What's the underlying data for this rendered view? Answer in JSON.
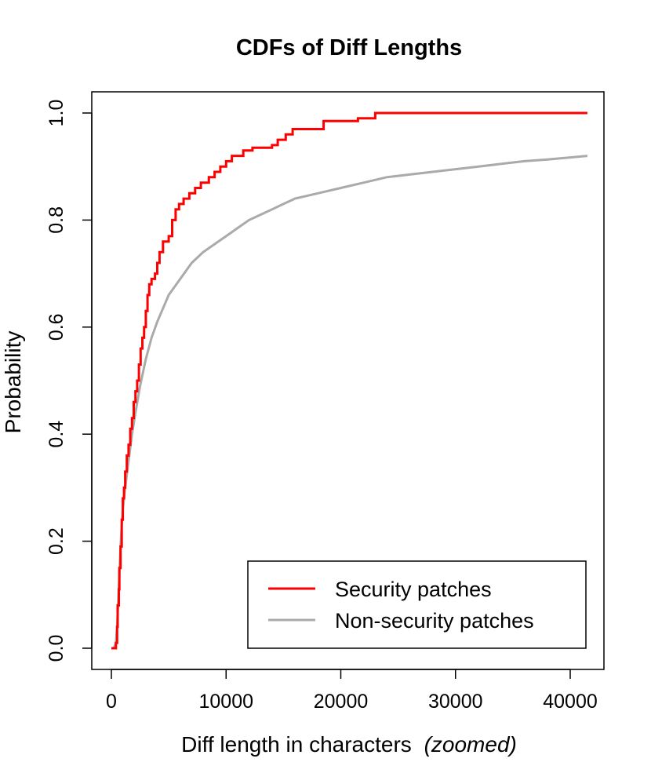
{
  "chart_data": {
    "type": "line",
    "title": "CDFs of Diff Lengths",
    "xlabel": "Diff length in characters",
    "xlabel_suffix": "(zoomed)",
    "ylabel": "Probability",
    "xlim": [
      0,
      41500
    ],
    "ylim": [
      0,
      1
    ],
    "x_ticks": [
      0,
      10000,
      20000,
      30000,
      40000
    ],
    "x_tick_labels": [
      "0",
      "10000",
      "20000",
      "30000",
      "40000"
    ],
    "y_ticks": [
      0,
      0.2,
      0.4,
      0.6,
      0.8,
      1
    ],
    "y_tick_labels": [
      "0.0",
      "0.2",
      "0.4",
      "0.6",
      "0.8",
      "1.0"
    ],
    "grid": false,
    "legend_position": "bottom-right",
    "series": [
      {
        "name": "Security patches",
        "color": "#ff0000",
        "step": true,
        "points": [
          [
            0,
            0
          ],
          [
            300,
            0
          ],
          [
            400,
            0.01
          ],
          [
            500,
            0.04
          ],
          [
            550,
            0.08
          ],
          [
            650,
            0.11
          ],
          [
            700,
            0.15
          ],
          [
            800,
            0.19
          ],
          [
            900,
            0.24
          ],
          [
            1000,
            0.28
          ],
          [
            1100,
            0.3
          ],
          [
            1200,
            0.33
          ],
          [
            1350,
            0.36
          ],
          [
            1500,
            0.38
          ],
          [
            1650,
            0.41
          ],
          [
            1800,
            0.43
          ],
          [
            1950,
            0.46
          ],
          [
            2100,
            0.48
          ],
          [
            2250,
            0.5
          ],
          [
            2400,
            0.53
          ],
          [
            2550,
            0.56
          ],
          [
            2700,
            0.58
          ],
          [
            2850,
            0.6
          ],
          [
            3000,
            0.63
          ],
          [
            3150,
            0.66
          ],
          [
            3300,
            0.68
          ],
          [
            3500,
            0.69
          ],
          [
            3800,
            0.7
          ],
          [
            4000,
            0.72
          ],
          [
            4200,
            0.74
          ],
          [
            4500,
            0.76
          ],
          [
            5000,
            0.77
          ],
          [
            5300,
            0.8
          ],
          [
            5600,
            0.82
          ],
          [
            5900,
            0.83
          ],
          [
            6300,
            0.84
          ],
          [
            6800,
            0.85
          ],
          [
            7300,
            0.86
          ],
          [
            7800,
            0.87
          ],
          [
            8500,
            0.88
          ],
          [
            9000,
            0.89
          ],
          [
            9500,
            0.9
          ],
          [
            10000,
            0.91
          ],
          [
            10500,
            0.92
          ],
          [
            11500,
            0.93
          ],
          [
            12300,
            0.935
          ],
          [
            14000,
            0.94
          ],
          [
            14500,
            0.95
          ],
          [
            15200,
            0.96
          ],
          [
            15800,
            0.97
          ],
          [
            18500,
            0.985
          ],
          [
            21500,
            0.99
          ],
          [
            23000,
            1.0
          ],
          [
            41500,
            1.0
          ]
        ]
      },
      {
        "name": "Non-security patches",
        "color": "#aaaaaa",
        "step": false,
        "points": [
          [
            0,
            0
          ],
          [
            200,
            0
          ],
          [
            300,
            0.005
          ],
          [
            400,
            0.01
          ],
          [
            500,
            0.04
          ],
          [
            600,
            0.09
          ],
          [
            700,
            0.14
          ],
          [
            800,
            0.19
          ],
          [
            900,
            0.23
          ],
          [
            1000,
            0.26
          ],
          [
            1200,
            0.3
          ],
          [
            1500,
            0.35
          ],
          [
            1800,
            0.4
          ],
          [
            2100,
            0.44
          ],
          [
            2500,
            0.49
          ],
          [
            3000,
            0.54
          ],
          [
            3500,
            0.58
          ],
          [
            4000,
            0.61
          ],
          [
            5000,
            0.66
          ],
          [
            6000,
            0.69
          ],
          [
            7000,
            0.72
          ],
          [
            8000,
            0.74
          ],
          [
            9000,
            0.755
          ],
          [
            10000,
            0.77
          ],
          [
            11000,
            0.785
          ],
          [
            12000,
            0.8
          ],
          [
            13000,
            0.81
          ],
          [
            14000,
            0.82
          ],
          [
            15000,
            0.83
          ],
          [
            16000,
            0.84
          ],
          [
            18000,
            0.85
          ],
          [
            20000,
            0.86
          ],
          [
            22000,
            0.87
          ],
          [
            24000,
            0.88
          ],
          [
            26000,
            0.885
          ],
          [
            28000,
            0.89
          ],
          [
            30000,
            0.895
          ],
          [
            32000,
            0.9
          ],
          [
            34000,
            0.905
          ],
          [
            36000,
            0.91
          ],
          [
            38000,
            0.913
          ],
          [
            40000,
            0.917
          ],
          [
            41500,
            0.92
          ]
        ]
      }
    ]
  }
}
